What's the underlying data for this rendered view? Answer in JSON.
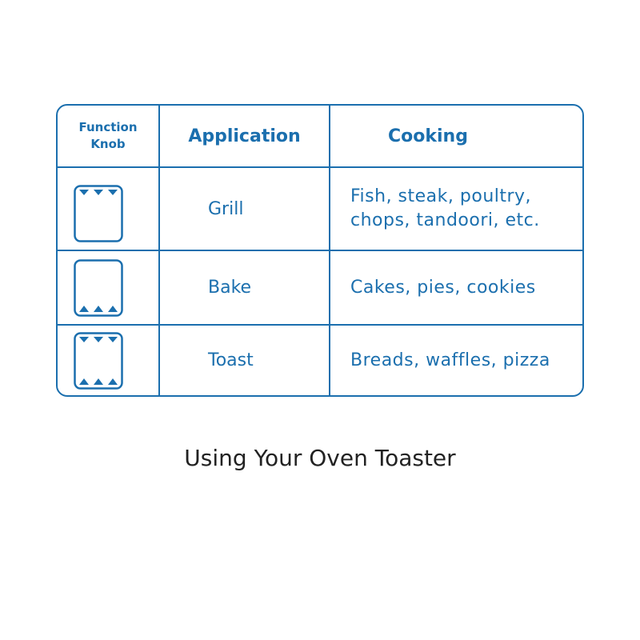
{
  "table": {
    "headers": {
      "function_knob": "Function\nKnob",
      "application": "Application",
      "cooking": "Cooking"
    },
    "rows": [
      {
        "knob_icon": "grill-top-heat-icon",
        "application": "Grill",
        "cooking": "Fish, steak, poultry,\nchops, tandoori, etc."
      },
      {
        "knob_icon": "bake-bottom-heat-icon",
        "application": "Bake",
        "cooking": "Cakes, pies, cookies"
      },
      {
        "knob_icon": "toast-top-bottom-heat-icon",
        "application": "Toast",
        "cooking": "Breads, waffles, pizza"
      }
    ],
    "accent_color": "#1b6fae"
  },
  "caption": "Using Your Oven Toaster"
}
